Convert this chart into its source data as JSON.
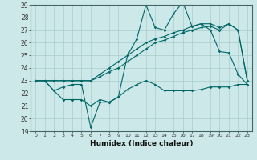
{
  "xlabel": "Humidex (Indice chaleur)",
  "xlim": [
    -0.5,
    23.5
  ],
  "ylim": [
    19,
    29
  ],
  "yticks": [
    19,
    20,
    21,
    22,
    23,
    24,
    25,
    26,
    27,
    28,
    29
  ],
  "xticks": [
    0,
    1,
    2,
    3,
    4,
    5,
    6,
    7,
    8,
    9,
    10,
    11,
    12,
    13,
    14,
    15,
    16,
    17,
    18,
    19,
    20,
    21,
    22,
    23
  ],
  "bg_color": "#cce8e8",
  "grid_color": "#aacccc",
  "line_color": "#006666",
  "lines": [
    {
      "x": [
        0,
        1,
        2,
        3,
        4,
        5,
        6,
        7,
        8,
        9,
        10,
        11,
        12,
        13,
        14,
        15,
        16,
        17,
        18,
        19,
        20,
        21,
        22,
        23
      ],
      "y": [
        23,
        23,
        22.2,
        21.5,
        21.5,
        21.5,
        21.0,
        21.5,
        21.3,
        21.7,
        22.3,
        22.7,
        23.0,
        22.7,
        22.2,
        22.2,
        22.2,
        22.2,
        22.3,
        22.5,
        22.5,
        22.5,
        22.7,
        22.7
      ]
    },
    {
      "x": [
        0,
        1,
        2,
        3,
        4,
        5,
        6,
        7,
        8,
        9,
        10,
        11,
        12,
        13,
        14,
        15,
        16,
        17,
        18,
        19,
        20,
        21,
        22,
        23
      ],
      "y": [
        23,
        23,
        22.2,
        22.5,
        22.7,
        22.7,
        19.3,
        21.3,
        21.3,
        21.7,
        25.0,
        26.3,
        29.0,
        27.2,
        27.0,
        28.3,
        29.2,
        27.3,
        27.5,
        27.0,
        25.3,
        25.2,
        23.5,
        22.7
      ]
    },
    {
      "x": [
        0,
        1,
        2,
        3,
        4,
        5,
        6,
        7,
        8,
        9,
        10,
        11,
        12,
        13,
        14,
        15,
        16,
        17,
        18,
        19,
        20,
        21,
        22,
        23
      ],
      "y": [
        23,
        23,
        23,
        23,
        23,
        23,
        23,
        23.5,
        24.0,
        24.5,
        25.0,
        25.5,
        26.0,
        26.3,
        26.5,
        26.8,
        27.0,
        27.3,
        27.5,
        27.5,
        27.2,
        27.5,
        27.0,
        23.0
      ]
    },
    {
      "x": [
        0,
        1,
        2,
        3,
        4,
        5,
        6,
        7,
        8,
        9,
        10,
        11,
        12,
        13,
        14,
        15,
        16,
        17,
        18,
        19,
        20,
        21,
        22,
        23
      ],
      "y": [
        23,
        23,
        23,
        23,
        23,
        23,
        23,
        23.3,
        23.7,
        24.0,
        24.5,
        25.0,
        25.5,
        26.0,
        26.2,
        26.5,
        26.8,
        27.0,
        27.2,
        27.3,
        27.0,
        27.5,
        27.0,
        23.0
      ]
    }
  ]
}
